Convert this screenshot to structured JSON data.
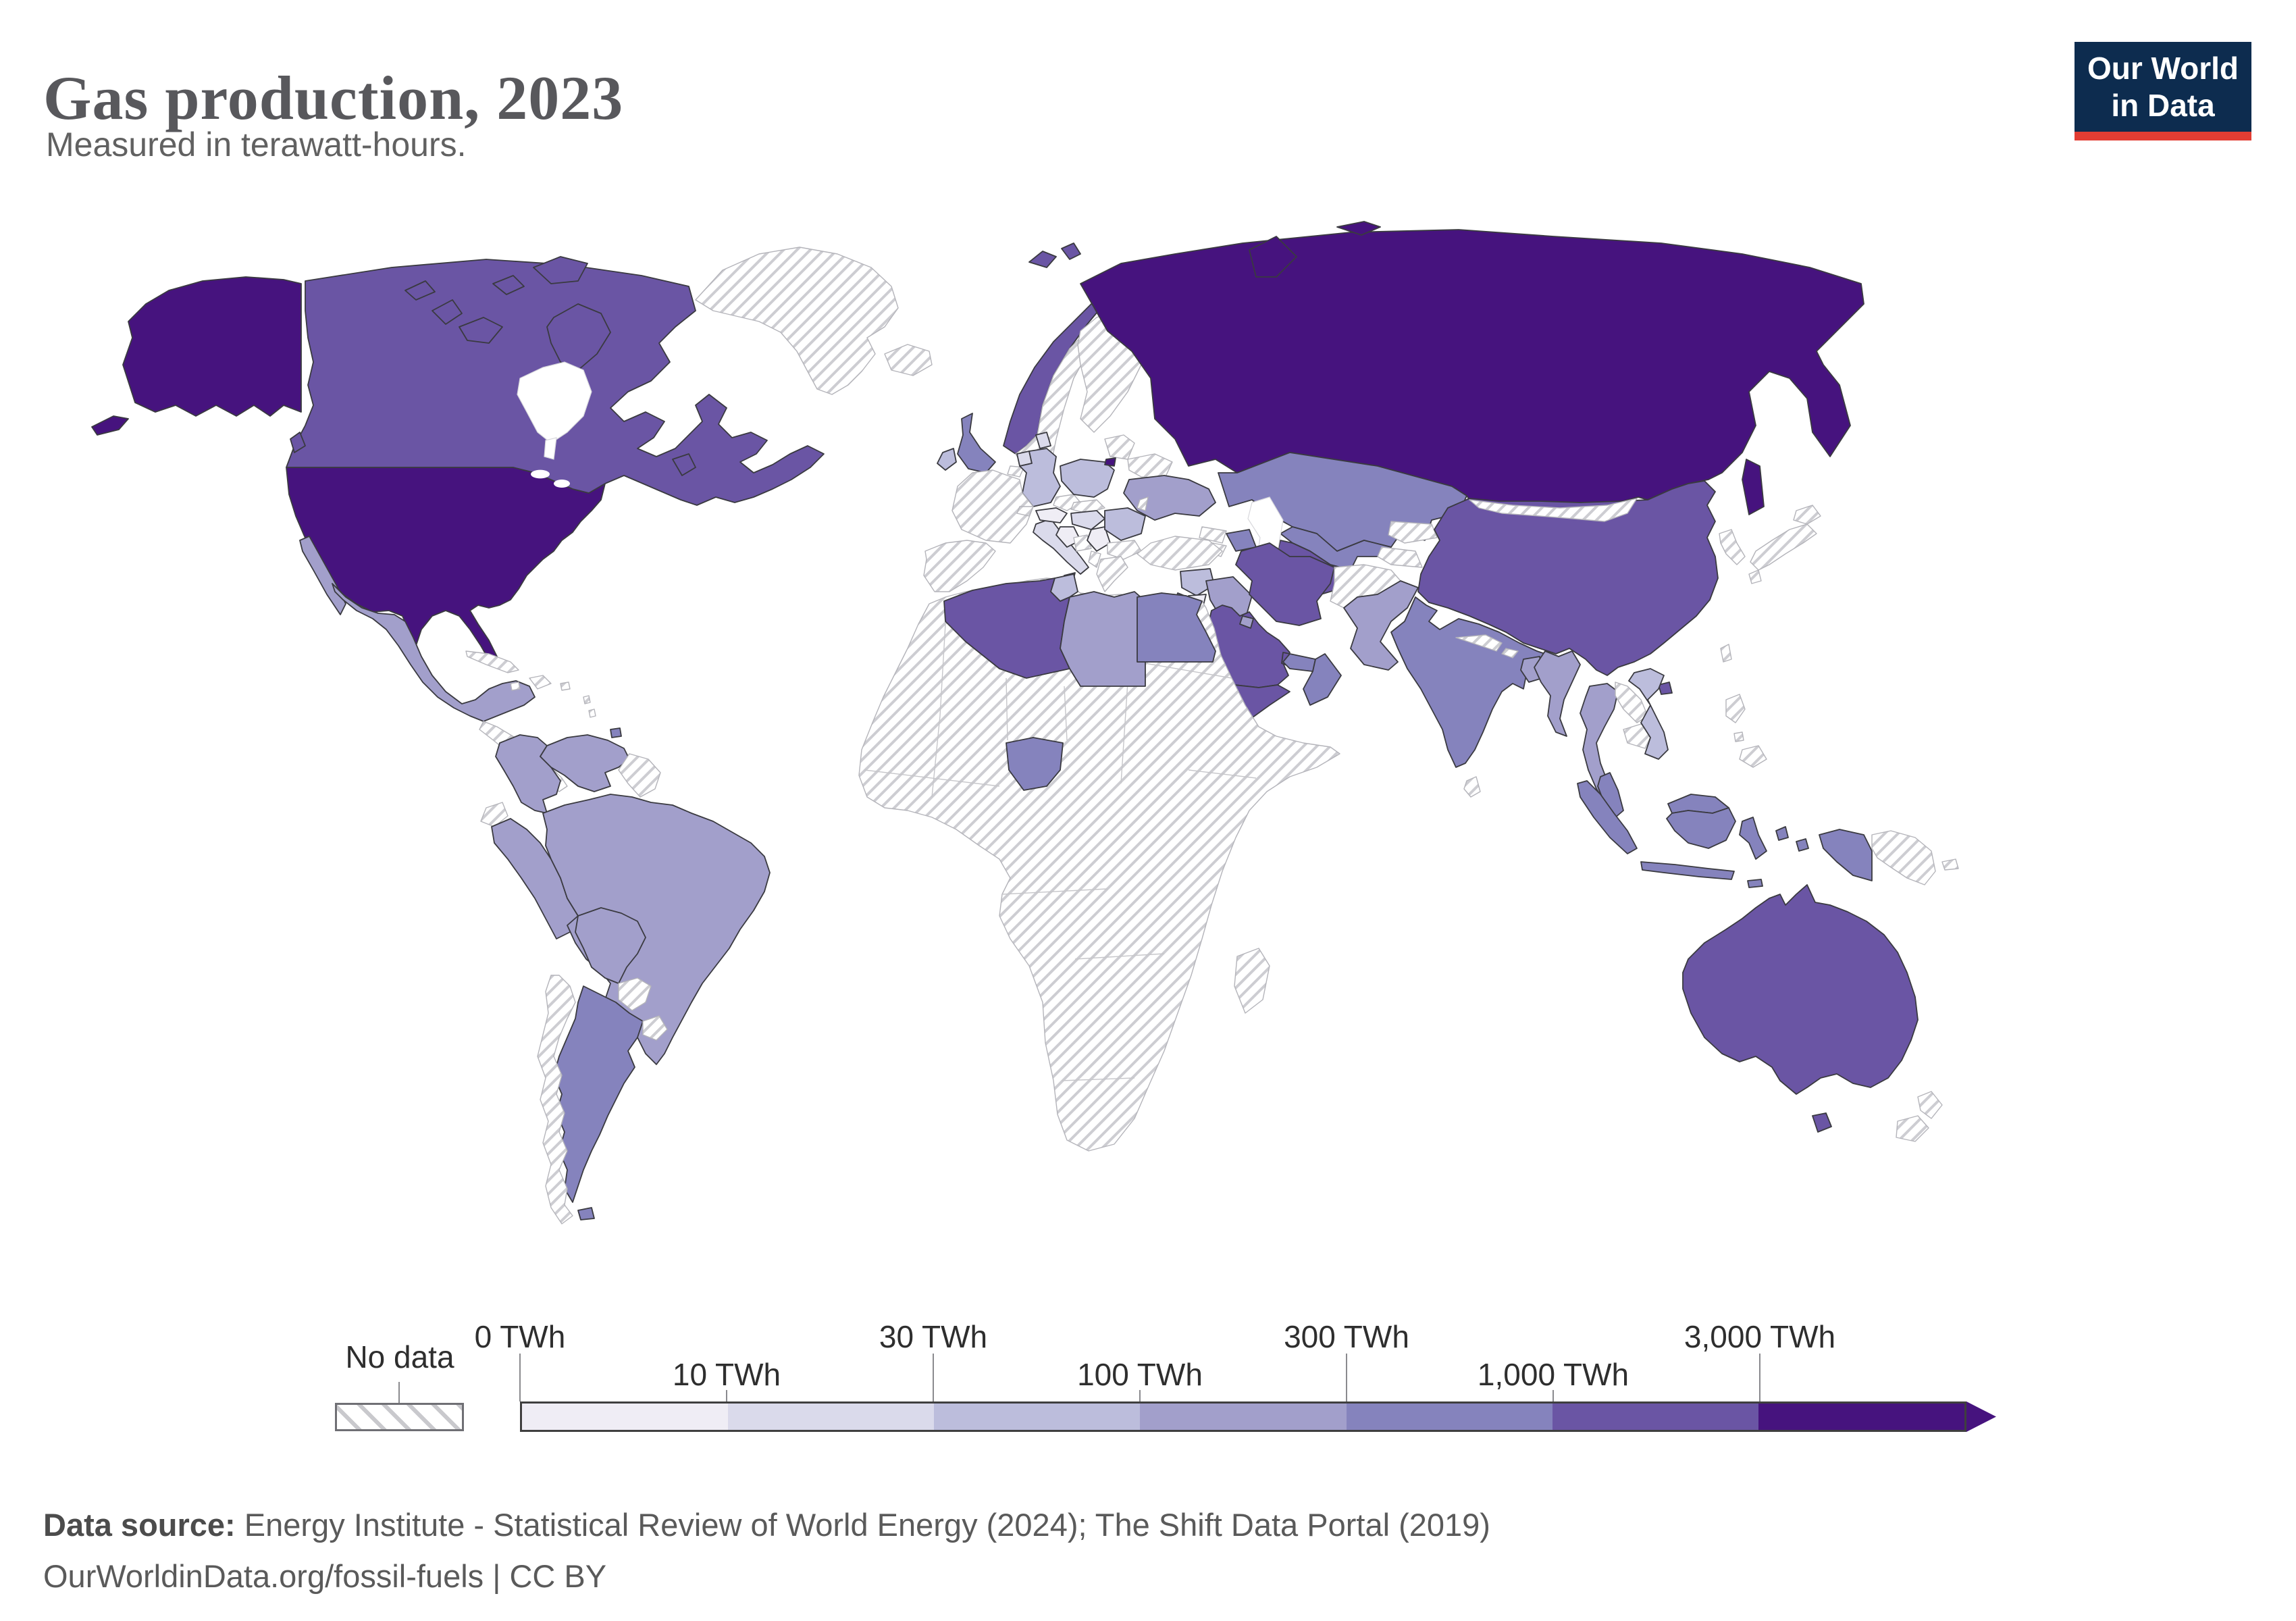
{
  "header": {
    "title": "Gas production, 2023",
    "subtitle": "Measured in terawatt-hours.",
    "logo": {
      "line1": "Our World",
      "line2": "in Data",
      "bg_color": "#0d2c4f",
      "accent_color": "#e23d33"
    }
  },
  "footer": {
    "source_label": "Data source:",
    "source_text": " Energy Institute - Statistical Review of World Energy (2024); The Shift Data Portal (2019)",
    "line2": "OurWorldinData.org/fossil-fuels | CC BY"
  },
  "legend": {
    "no_data_label": "No data",
    "bins": [
      {
        "label": "0 TWh",
        "color": "#efedf5"
      },
      {
        "label": "10 TWh",
        "color": "#dadaeb"
      },
      {
        "label": "30 TWh",
        "color": "#bcbddc"
      },
      {
        "label": "100 TWh",
        "color": "#a29fcb"
      },
      {
        "label": "300 TWh",
        "color": "#8583bd"
      },
      {
        "label": "1,000 TWh",
        "color": "#6a55a4"
      },
      {
        "label": "3,000 TWh",
        "color": "#46137e"
      }
    ],
    "ticks": [
      {
        "label": "0 TWh",
        "pos": 0,
        "row": "top"
      },
      {
        "label": "10 TWh",
        "pos": 1,
        "row": "bottom"
      },
      {
        "label": "30 TWh",
        "pos": 2,
        "row": "top"
      },
      {
        "label": "100 TWh",
        "pos": 3,
        "row": "bottom"
      },
      {
        "label": "300 TWh",
        "pos": 4,
        "row": "top"
      },
      {
        "label": "1,000 TWh",
        "pos": 5,
        "row": "bottom"
      },
      {
        "label": "3,000 TWh",
        "pos": 6,
        "row": "top"
      }
    ]
  },
  "map": {
    "ocean_color": "#ffffff",
    "country_stroke": "#3a3a40",
    "nodata_stroke": "#b4b4ba",
    "countries": [
      {
        "id": "usa",
        "name": "United States",
        "bin": 6
      },
      {
        "id": "russia",
        "name": "Russia",
        "bin": 6
      },
      {
        "id": "kaliningrad",
        "name": "Russia (Kaliningrad)",
        "bin": 6
      },
      {
        "id": "canada",
        "name": "Canada",
        "bin": 5
      },
      {
        "id": "norway",
        "name": "Norway",
        "bin": 5
      },
      {
        "id": "algeria",
        "name": "Algeria",
        "bin": 5
      },
      {
        "id": "saudi-arabia",
        "name": "Saudi Arabia",
        "bin": 5
      },
      {
        "id": "iran",
        "name": "Iran",
        "bin": 5
      },
      {
        "id": "qatar",
        "name": "Qatar",
        "bin": 5
      },
      {
        "id": "yemen",
        "name": "Yemen",
        "bin": 5
      },
      {
        "id": "turkmenistan",
        "name": "Turkmenistan",
        "bin": 5
      },
      {
        "id": "china",
        "name": "China",
        "bin": 5
      },
      {
        "id": "australia",
        "name": "Australia",
        "bin": 5
      },
      {
        "id": "uk",
        "name": "United Kingdom",
        "bin": 4
      },
      {
        "id": "kazakhstan",
        "name": "Kazakhstan",
        "bin": 4
      },
      {
        "id": "uzbekistan",
        "name": "Uzbekistan",
        "bin": 4
      },
      {
        "id": "azerbaijan",
        "name": "Azerbaijan",
        "bin": 4
      },
      {
        "id": "egypt",
        "name": "Egypt",
        "bin": 4
      },
      {
        "id": "nigeria",
        "name": "Nigeria",
        "bin": 4
      },
      {
        "id": "oman",
        "name": "Oman",
        "bin": 4
      },
      {
        "id": "uae",
        "name": "United Arab Emirates",
        "bin": 4
      },
      {
        "id": "india",
        "name": "India",
        "bin": 4
      },
      {
        "id": "indonesia",
        "name": "Indonesia",
        "bin": 4
      },
      {
        "id": "malaysia",
        "name": "Malaysia",
        "bin": 4
      },
      {
        "id": "argentina",
        "name": "Argentina",
        "bin": 4
      },
      {
        "id": "israel",
        "name": "Israel",
        "bin": 4
      },
      {
        "id": "trinidad",
        "name": "Trinidad and Tobago",
        "bin": 4
      },
      {
        "id": "mexico",
        "name": "Mexico",
        "bin": 3
      },
      {
        "id": "colombia",
        "name": "Colombia",
        "bin": 3
      },
      {
        "id": "venezuela",
        "name": "Venezuela",
        "bin": 3
      },
      {
        "id": "peru",
        "name": "Peru",
        "bin": 3
      },
      {
        "id": "brazil",
        "name": "Brazil",
        "bin": 3
      },
      {
        "id": "bolivia",
        "name": "Bolivia",
        "bin": 3
      },
      {
        "id": "libya",
        "name": "Libya",
        "bin": 3
      },
      {
        "id": "iraq",
        "name": "Iraq",
        "bin": 3
      },
      {
        "id": "kuwait",
        "name": "Kuwait",
        "bin": 3
      },
      {
        "id": "ukraine",
        "name": "Ukraine",
        "bin": 3
      },
      {
        "id": "pakistan",
        "name": "Pakistan",
        "bin": 3
      },
      {
        "id": "bangladesh",
        "name": "Bangladesh",
        "bin": 3
      },
      {
        "id": "myanmar",
        "name": "Myanmar",
        "bin": 3
      },
      {
        "id": "thailand",
        "name": "Thailand",
        "bin": 3
      },
      {
        "id": "germany",
        "name": "Germany",
        "bin": 2
      },
      {
        "id": "poland",
        "name": "Poland",
        "bin": 2
      },
      {
        "id": "romania",
        "name": "Romania",
        "bin": 2
      },
      {
        "id": "ireland",
        "name": "Ireland",
        "bin": 2
      },
      {
        "id": "vietnam",
        "name": "Vietnam",
        "bin": 2
      },
      {
        "id": "tunisia",
        "name": "Tunisia",
        "bin": 2
      },
      {
        "id": "syria",
        "name": "Syria",
        "bin": 2
      },
      {
        "id": "netherlands",
        "name": "Netherlands",
        "bin": 1
      },
      {
        "id": "denmark",
        "name": "Denmark",
        "bin": 1
      },
      {
        "id": "italy",
        "name": "Italy",
        "bin": 1
      },
      {
        "id": "hungary",
        "name": "Hungary",
        "bin": 1
      },
      {
        "id": "austria",
        "name": "Austria",
        "bin": 0
      },
      {
        "id": "jordan",
        "name": "Jordan",
        "bin": 0
      },
      {
        "id": "croatia",
        "name": "Croatia",
        "bin": 0
      },
      {
        "id": "serbia",
        "name": "Serbia",
        "bin": 0
      },
      {
        "id": "greenland",
        "name": "Greenland",
        "bin": -1
      },
      {
        "id": "iceland",
        "name": "Iceland",
        "bin": -1
      },
      {
        "id": "sweden",
        "name": "Sweden",
        "bin": -1
      },
      {
        "id": "finland",
        "name": "Finland",
        "bin": -1
      },
      {
        "id": "france",
        "name": "France",
        "bin": -1
      },
      {
        "id": "iberia",
        "name": "Spain / Portugal",
        "bin": -1
      },
      {
        "id": "belgium",
        "name": "Belgium",
        "bin": -1
      },
      {
        "id": "switzerland",
        "name": "Switzerland",
        "bin": -1
      },
      {
        "id": "czechia",
        "name": "Czechia",
        "bin": -1
      },
      {
        "id": "slovakia",
        "name": "Slovakia",
        "bin": -1
      },
      {
        "id": "bosnia",
        "name": "Bosnia",
        "bin": -1
      },
      {
        "id": "albania",
        "name": "Albania",
        "bin": -1
      },
      {
        "id": "bulgaria",
        "name": "Bulgaria",
        "bin": -1
      },
      {
        "id": "greece",
        "name": "Greece",
        "bin": -1
      },
      {
        "id": "turkey",
        "name": "Turkey",
        "bin": -1
      },
      {
        "id": "belarus",
        "name": "Belarus",
        "bin": -1
      },
      {
        "id": "baltics",
        "name": "Baltic states",
        "bin": -1
      },
      {
        "id": "moldova",
        "name": "Moldova",
        "bin": -1
      },
      {
        "id": "georgia",
        "name": "Georgia",
        "bin": -1
      },
      {
        "id": "armenia",
        "name": "Armenia",
        "bin": -1
      },
      {
        "id": "afghanistan",
        "name": "Afghanistan",
        "bin": -1
      },
      {
        "id": "nepal",
        "name": "Nepal",
        "bin": -1
      },
      {
        "id": "bhutan",
        "name": "Bhutan",
        "bin": -1
      },
      {
        "id": "mongolia",
        "name": "Mongolia",
        "bin": -1
      },
      {
        "id": "kyrgyzstan",
        "name": "Kyrgyzstan",
        "bin": -1
      },
      {
        "id": "tajikistan",
        "name": "Tajikistan",
        "bin": -1
      },
      {
        "id": "japan",
        "name": "Japan",
        "bin": -1
      },
      {
        "id": "korea",
        "name": "North / South Korea",
        "bin": -1
      },
      {
        "id": "taiwan",
        "name": "Taiwan",
        "bin": -1
      },
      {
        "id": "philippines",
        "name": "Philippines",
        "bin": -1
      },
      {
        "id": "png",
        "name": "Papua New Guinea",
        "bin": -1
      },
      {
        "id": "new-zealand",
        "name": "New Zealand",
        "bin": -1
      },
      {
        "id": "sri-lanka",
        "name": "Sri Lanka",
        "bin": -1
      },
      {
        "id": "cambodia",
        "name": "Cambodia",
        "bin": -1
      },
      {
        "id": "laos",
        "name": "Laos",
        "bin": -1
      },
      {
        "id": "africa-nodata",
        "name": "Africa (no data)",
        "bin": -1
      },
      {
        "id": "madagascar",
        "name": "Madagascar",
        "bin": -1
      },
      {
        "id": "chile",
        "name": "Chile",
        "bin": -1
      },
      {
        "id": "ecuador",
        "name": "Ecuador",
        "bin": -1
      },
      {
        "id": "paraguay",
        "name": "Paraguay",
        "bin": -1
      },
      {
        "id": "uruguay",
        "name": "Uruguay",
        "bin": -1
      },
      {
        "id": "guyanas",
        "name": "Guyana / Suriname / French Guiana",
        "bin": -1
      },
      {
        "id": "central-america",
        "name": "Central America",
        "bin": -1
      },
      {
        "id": "cuba",
        "name": "Cuba",
        "bin": -1
      },
      {
        "id": "hispaniola",
        "name": "Hispaniola",
        "bin": -1
      },
      {
        "id": "caribbean",
        "name": "Caribbean islands",
        "bin": -1
      }
    ]
  },
  "chart_data": {
    "type": "choropleth_map",
    "title": "Gas production, 2023",
    "unit": "terawatt-hours (TWh)",
    "legend_bins": [
      "0 TWh",
      "10 TWh",
      "30 TWh",
      "100 TWh",
      "300 TWh",
      "1,000 TWh",
      "3,000 TWh"
    ],
    "bin_colors": [
      "#efedf5",
      "#dadaeb",
      "#bcbddc",
      "#a29fcb",
      "#8583bd",
      "#6a55a4",
      "#46137e"
    ],
    "no_data_style": "diagonal-hatch",
    "categories": {
      "3,000+ TWh": [
        "United States",
        "Russia"
      ],
      "1,000-3,000 TWh": [
        "Canada",
        "Norway",
        "Algeria",
        "Saudi Arabia",
        "Iran",
        "Qatar",
        "Turkmenistan",
        "China",
        "Australia",
        "Yemen"
      ],
      "300-1,000 TWh": [
        "United Kingdom",
        "Kazakhstan",
        "Uzbekistan",
        "Azerbaijan",
        "Egypt",
        "Nigeria",
        "Oman",
        "United Arab Emirates",
        "India",
        "Indonesia",
        "Malaysia",
        "Argentina",
        "Israel",
        "Trinidad and Tobago"
      ],
      "100-300 TWh": [
        "Mexico",
        "Colombia",
        "Venezuela",
        "Peru",
        "Brazil",
        "Bolivia",
        "Libya",
        "Iraq",
        "Kuwait",
        "Ukraine",
        "Pakistan",
        "Bangladesh",
        "Myanmar",
        "Thailand"
      ],
      "30-100 TWh": [
        "Germany",
        "Poland",
        "Romania",
        "Ireland",
        "Vietnam",
        "Tunisia",
        "Syria"
      ],
      "10-30 TWh": [
        "Netherlands",
        "Denmark",
        "Italy",
        "Hungary"
      ],
      "0-10 TWh": [
        "Austria",
        "Jordan",
        "Croatia",
        "Serbia"
      ],
      "No data": [
        "Greenland",
        "Iceland",
        "Sweden",
        "Finland",
        "France",
        "Spain",
        "Portugal",
        "Turkey",
        "Greece",
        "Belarus",
        "Mongolia",
        "Afghanistan",
        "Japan",
        "South Korea",
        "Philippines",
        "Papua New Guinea",
        "New Zealand",
        "Chile",
        "Ecuador",
        "Paraguay",
        "Uruguay",
        "Cuba",
        "most of Africa",
        "Central America"
      ]
    }
  }
}
